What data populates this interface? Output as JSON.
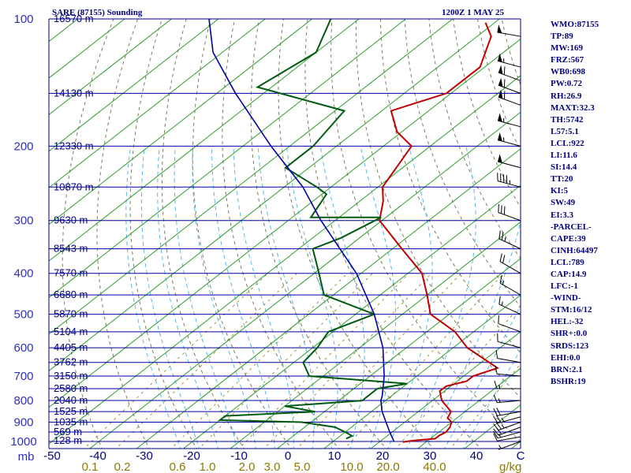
{
  "header": {
    "station": "SARE (87155) Sounding",
    "time": "1200Z  1 MAY 25"
  },
  "indices": [
    "WMO:87155",
    "TP:89",
    "MW:169",
    "FRZ:567",
    "WB0:698",
    "PW:0.72",
    "RH:26.9",
    "MAXT:32.3",
    "TH:5742",
    "L57:5.1",
    "LCL:922",
    "LI:11.6",
    "SI:14.4",
    "TT:20",
    "KI:5",
    "SW:49",
    "EI:3.3",
    "-PARCEL-",
    "CAPE:39",
    "CINH:64497",
    "LCL:789",
    "CAP:14.9",
    "LFC:-1",
    "-WIND-",
    "STM:16/12",
    "HEL:-32",
    "SHR+:0.0",
    "SRDS:123",
    "EHI:0.0",
    "BRN:2.1",
    "BSHR:19"
  ],
  "colors": {
    "isobar": "#0000a0",
    "isotherm": "#2e9e2e",
    "dry_adiabat": "#7a7a5a",
    "moist_adiabat": "#5bb5e6",
    "temperature": "#c00000",
    "dewpoint": "#005a10",
    "parcel": "#0000a0",
    "axis_text": "#000080",
    "mixing_ratio_text": "#8c7a00"
  },
  "chart_data": {
    "type": "skew-t log-p",
    "yaxis": {
      "scale": "log",
      "range_hPa": [
        1000,
        100
      ],
      "unit_label": "mb",
      "ticks": [
        "100",
        "200",
        "300",
        "400",
        "500",
        "600",
        "700",
        "800",
        "900",
        "1000"
      ]
    },
    "xaxis": {
      "unit": "°C",
      "range": [
        -50,
        50
      ],
      "ticks": [
        "-50",
        "-40",
        "-30",
        "-20",
        "-10",
        "0",
        "10",
        "20",
        "30",
        "40",
        "C"
      ]
    },
    "mixing_ratio_labels": {
      "values": [
        "0.1",
        "0.2",
        "0.6",
        "1.0",
        "2.0",
        "3.0",
        "5.0",
        "10.0",
        "20.0",
        "40.0"
      ],
      "unit": "g/kg"
    },
    "height_labels": [
      {
        "p": 100,
        "label": "16570 m"
      },
      {
        "p": 150,
        "label": "14130 m"
      },
      {
        "p": 200,
        "label": "12330 m"
      },
      {
        "p": 250,
        "label": "10870 m"
      },
      {
        "p": 300,
        "label": "9630 m"
      },
      {
        "p": 350,
        "label": "8543 m"
      },
      {
        "p": 400,
        "label": "7570 m"
      },
      {
        "p": 450,
        "label": "6680 m"
      },
      {
        "p": 500,
        "label": "5870 m"
      },
      {
        "p": 550,
        "label": "5104 m"
      },
      {
        "p": 600,
        "label": "4405 m"
      },
      {
        "p": 650,
        "label": "3762 m"
      },
      {
        "p": 700,
        "label": "3150 m"
      },
      {
        "p": 750,
        "label": "2580 m"
      },
      {
        "p": 800,
        "label": "2040 m"
      },
      {
        "p": 850,
        "label": "1525 m"
      },
      {
        "p": 900,
        "label": "1035 m"
      },
      {
        "p": 950,
        "label": "569 m"
      },
      {
        "p": 1000,
        "label": "128 m"
      }
    ],
    "series": [
      {
        "key": "temperature",
        "points": [
          [
            1003,
            25.0
          ],
          [
            995,
            27.0
          ],
          [
            985,
            31.0
          ],
          [
            970,
            31.0
          ],
          [
            950,
            31.5
          ],
          [
            925,
            31.0
          ],
          [
            900,
            30.0
          ],
          [
            880,
            28.0
          ],
          [
            850,
            27.0
          ],
          [
            800,
            22.0
          ],
          [
            760,
            19.0
          ],
          [
            740,
            19.0
          ],
          [
            720,
            22.0
          ],
          [
            700,
            22.0
          ],
          [
            670,
            25.0
          ],
          [
            600,
            13.0
          ],
          [
            550,
            6.0
          ],
          [
            500,
            -4.0
          ],
          [
            450,
            -10.0
          ],
          [
            400,
            -17.0
          ],
          [
            350,
            -28.0
          ],
          [
            300,
            -40.5
          ],
          [
            270,
            -45.0
          ],
          [
            250,
            -49.0
          ],
          [
            200,
            -54.0
          ],
          [
            185,
            -61.0
          ],
          [
            165,
            -68.0
          ],
          [
            150,
            -61.0
          ],
          [
            130,
            -61.0
          ],
          [
            110,
            -67.0
          ],
          [
            102,
            -72.0
          ]
        ]
      },
      {
        "key": "dewpoint",
        "points": [
          [
            985,
            12.0
          ],
          [
            970,
            12.5
          ],
          [
            950,
            10.0
          ],
          [
            925,
            6.5
          ],
          [
            900,
            -2.0
          ],
          [
            890,
            -20.0
          ],
          [
            870,
            -20.0
          ],
          [
            850,
            -2.0
          ],
          [
            825,
            -10.0
          ],
          [
            800,
            5.0
          ],
          [
            750,
            5.0
          ],
          [
            730,
            10.0
          ],
          [
            700,
            -13.0
          ],
          [
            650,
            -18.0
          ],
          [
            600,
            -19.0
          ],
          [
            550,
            -21.0
          ],
          [
            500,
            -16.0
          ],
          [
            450,
            -32.0
          ],
          [
            400,
            -39.0
          ],
          [
            350,
            -47.0
          ],
          [
            330,
            -44.0
          ],
          [
            295,
            -41.0
          ],
          [
            295,
            -56.0
          ],
          [
            260,
            -59.0
          ],
          [
            250,
            -63.0
          ],
          [
            225,
            -75.0
          ],
          [
            200,
            -75.0
          ],
          [
            165,
            -78.0
          ],
          [
            145,
            -103.0
          ],
          [
            120,
            -100.0
          ],
          [
            100,
            -106.0
          ]
        ]
      },
      {
        "key": "parcel",
        "points": [
          [
            1000,
            23.0
          ],
          [
            950,
            19.5
          ],
          [
            900,
            16.0
          ],
          [
            850,
            12.3
          ],
          [
            800,
            9.0
          ],
          [
            780,
            8.0
          ],
          [
            700,
            3.0
          ],
          [
            600,
            -5.0
          ],
          [
            500,
            -16.0
          ],
          [
            400,
            -31.0
          ],
          [
            300,
            -53.0
          ],
          [
            250,
            -66.0
          ],
          [
            200,
            -84.0
          ],
          [
            150,
            -106.0
          ],
          [
            120,
            -122.0
          ],
          [
            100,
            -132.0
          ]
        ]
      }
    ],
    "wind_barbs": [
      {
        "p": 1000,
        "dir": 250,
        "spd": 5
      },
      {
        "p": 975,
        "dir": 260,
        "spd": 10
      },
      {
        "p": 950,
        "dir": 255,
        "spd": 15
      },
      {
        "p": 925,
        "dir": 250,
        "spd": 20
      },
      {
        "p": 900,
        "dir": 250,
        "spd": 25
      },
      {
        "p": 875,
        "dir": 255,
        "spd": 25
      },
      {
        "p": 850,
        "dir": 260,
        "spd": 20
      },
      {
        "p": 800,
        "dir": 265,
        "spd": 15
      },
      {
        "p": 750,
        "dir": 270,
        "spd": 15
      },
      {
        "p": 700,
        "dir": 275,
        "spd": 10
      },
      {
        "p": 650,
        "dir": 280,
        "spd": 10
      },
      {
        "p": 600,
        "dir": 285,
        "spd": 10
      },
      {
        "p": 550,
        "dir": 290,
        "spd": 10
      },
      {
        "p": 500,
        "dir": 295,
        "spd": 15
      },
      {
        "p": 450,
        "dir": 300,
        "spd": 15
      },
      {
        "p": 400,
        "dir": 300,
        "spd": 20
      },
      {
        "p": 350,
        "dir": 295,
        "spd": 25
      },
      {
        "p": 300,
        "dir": 290,
        "spd": 30
      },
      {
        "p": 250,
        "dir": 285,
        "spd": 45
      },
      {
        "p": 225,
        "dir": 285,
        "spd": 50
      },
      {
        "p": 200,
        "dir": 285,
        "spd": 55
      },
      {
        "p": 180,
        "dir": 285,
        "spd": 55
      },
      {
        "p": 160,
        "dir": 290,
        "spd": 60
      },
      {
        "p": 150,
        "dir": 290,
        "spd": 60
      },
      {
        "p": 140,
        "dir": 290,
        "spd": 60
      },
      {
        "p": 130,
        "dir": 285,
        "spd": 55
      },
      {
        "p": 110,
        "dir": 280,
        "spd": 50
      }
    ]
  }
}
